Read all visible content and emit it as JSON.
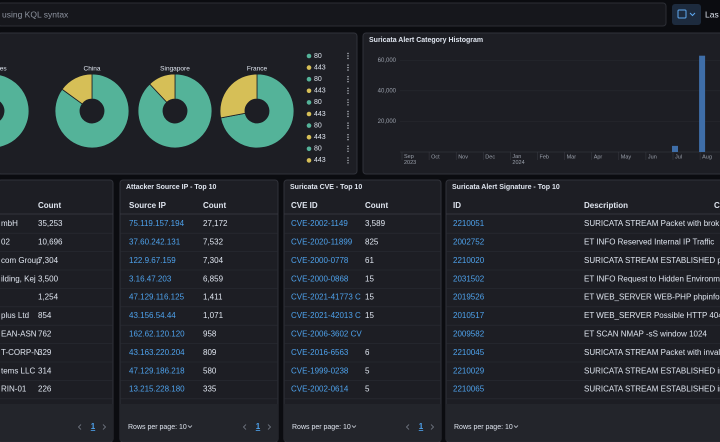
{
  "search": {
    "placeholder": "using KQL syntax",
    "date_button": "Las"
  },
  "donut_panel": {
    "donuts": [
      {
        "label": "ted States",
        "values": [
          90,
          10
        ]
      },
      {
        "label": "China",
        "values": [
          85,
          15
        ]
      },
      {
        "label": "Singapore",
        "values": [
          88,
          12
        ]
      },
      {
        "label": "France",
        "values": [
          72,
          28
        ]
      }
    ],
    "colors": [
      "#54b399",
      "#d6bf57"
    ],
    "legend": [
      80,
      443,
      80,
      443,
      80,
      443,
      80,
      443,
      80,
      443
    ]
  },
  "histogram": {
    "title": "Suricata Alert Category Histogram",
    "ylim": [
      0,
      70000
    ],
    "yticks": [
      {
        "value": 60000,
        "label": "60,000"
      },
      {
        "value": 40000,
        "label": "40,000"
      },
      {
        "value": 20000,
        "label": "20,000"
      }
    ],
    "x": [
      "Sep 2023",
      "Oct",
      "Nov",
      "Dec",
      "Jan 2024",
      "Feb",
      "Mar",
      "Apr",
      "May",
      "Jun",
      "Jul",
      "Aug"
    ],
    "values": [
      0,
      0,
      0,
      0,
      0,
      0,
      0,
      0,
      0,
      0,
      4000,
      63000
    ],
    "color": "#3f6ea8"
  },
  "tables": [
    {
      "headers": [
        null,
        "Count"
      ],
      "rows": [
        [
          "mbH",
          "35,253"
        ],
        [
          "02",
          "10,696"
        ],
        [
          "com Group",
          "7,304"
        ],
        [
          "ilding, Kej",
          "3,500"
        ],
        [
          null,
          "1,254"
        ],
        [
          "plus Ltd",
          "854"
        ],
        [
          "EAN-ASN",
          "762"
        ],
        [
          "T-CORP-N",
          "329"
        ],
        [
          "tems LLC",
          "314"
        ],
        [
          "RIN-01",
          "226"
        ]
      ],
      "footer": {
        "page": "1"
      }
    },
    {
      "title": "Attacker Source IP - Top 10",
      "headers": [
        "Source IP",
        "Count"
      ],
      "rows": [
        [
          "75.119.157.194",
          "27,172"
        ],
        [
          "37.60.242.131",
          "7,532"
        ],
        [
          "122.9.67.159",
          "7,304"
        ],
        [
          "3.16.47.203",
          "6,859"
        ],
        [
          "47.129.116.125",
          "1,411"
        ],
        [
          "43.156.54.44",
          "1,071"
        ],
        [
          "162.62.120.120",
          "958"
        ],
        [
          "43.163.220.204",
          "809"
        ],
        [
          "47.129.186.218",
          "580"
        ],
        [
          "13.215.228.180",
          "335"
        ]
      ],
      "footer": {
        "rows_per_page": "Rows per page: 10",
        "page": "1"
      }
    },
    {
      "title": "Suricata CVE - Top 10",
      "headers": [
        "CVE ID",
        "Count"
      ],
      "rows": [
        [
          "CVE-2002-1149",
          "3,589"
        ],
        [
          "CVE-2020-11899",
          "825"
        ],
        [
          "CVE-2000-0778",
          "61"
        ],
        [
          "CVE-2000-0868",
          "15"
        ],
        [
          "CVE-2021-41773 C",
          "15"
        ],
        [
          "CVE-2021-42013 C",
          "15"
        ],
        [
          "CVE-2006-3602 CV",
          null
        ],
        [
          "CVE-2016-6563",
          "6"
        ],
        [
          "CVE-1999-0238",
          "5"
        ],
        [
          "CVE-2002-0614",
          "5"
        ]
      ],
      "footer": {
        "rows_per_page": "Rows per page: 10",
        "page": "1"
      }
    },
    {
      "title": "Suricata Alert Signature - Top 10",
      "headers": [
        "ID",
        "Description",
        "C"
      ],
      "rows": [
        [
          "2210051",
          "SURICATA STREAM Packet with brok"
        ],
        [
          "2002752",
          "ET INFO Reserved Internal IP Traffic"
        ],
        [
          "2210020",
          "SURICATA STREAM ESTABLISHED pa"
        ],
        [
          "2031502",
          "ET INFO Request to Hidden Environm"
        ],
        [
          "2019526",
          "ET WEB_SERVER WEB-PHP phpinfo a"
        ],
        [
          "2010517",
          "ET WEB_SERVER Possible HTTP 404"
        ],
        [
          "2009582",
          "ET SCAN NMAP -sS window 1024"
        ],
        [
          "2210045",
          "SURICATA STREAM Packet with inval"
        ],
        [
          "2210029",
          "SURICATA STREAM ESTABLISHED inv"
        ],
        [
          "2210065",
          "SURICATA STREAM ESTABLISHED in"
        ]
      ],
      "footer": {
        "rows_per_page": "Rows per page: 10"
      }
    }
  ]
}
